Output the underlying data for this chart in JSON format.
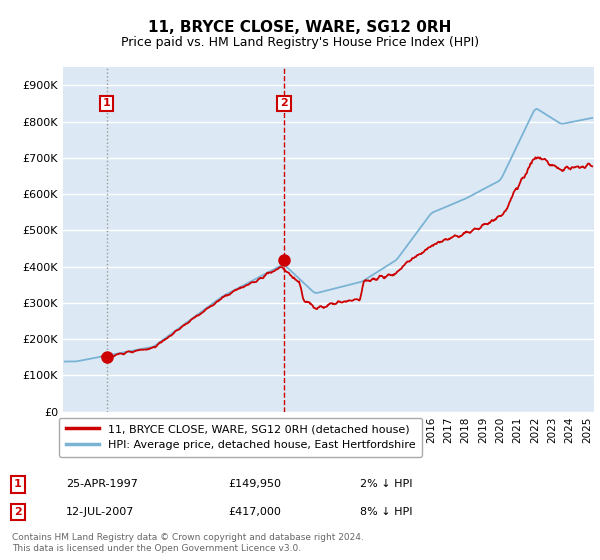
{
  "title": "11, BRYCE CLOSE, WARE, SG12 0RH",
  "subtitle": "Price paid vs. HM Land Registry's House Price Index (HPI)",
  "ylabel_ticks": [
    "£0",
    "£100K",
    "£200K",
    "£300K",
    "£400K",
    "£500K",
    "£600K",
    "£700K",
    "£800K",
    "£900K"
  ],
  "ylim": [
    0,
    950000
  ],
  "xlim_start": 1994.8,
  "xlim_end": 2025.4,
  "sale1_x": 1997.31,
  "sale1_y": 149950,
  "sale1_label": "1",
  "sale2_x": 2007.54,
  "sale2_y": 417000,
  "sale2_label": "2",
  "line_color_hpi": "#7ab3d4",
  "line_color_price": "#cc0000",
  "marker_color": "#cc0000",
  "dashed1_color": "#aaaaaa",
  "dashed2_color": "#cc0000",
  "chart_bg": "#dce9f5",
  "legend_label1": "11, BRYCE CLOSE, WARE, SG12 0RH (detached house)",
  "legend_label2": "HPI: Average price, detached house, East Hertfordshire",
  "table_row1": [
    "1",
    "25-APR-1997",
    "£149,950",
    "2% ↓ HPI"
  ],
  "table_row2": [
    "2",
    "12-JUL-2007",
    "£417,000",
    "8% ↓ HPI"
  ],
  "footnote": "Contains HM Land Registry data © Crown copyright and database right 2024.\nThis data is licensed under the Open Government Licence v3.0.",
  "background_color": "#ffffff",
  "grid_color": "#ffffff"
}
